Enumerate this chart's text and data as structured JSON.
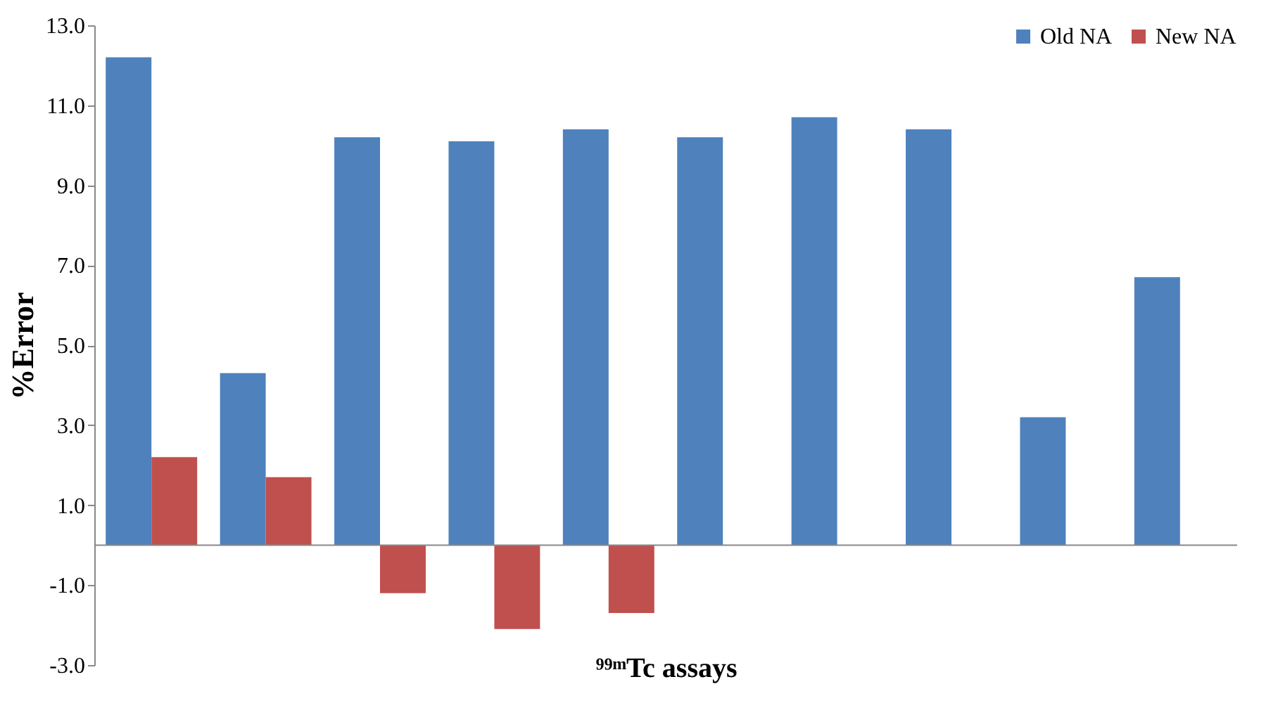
{
  "chart_data": {
    "type": "bar",
    "xlabel": "⁹⁹ᵐTc assays",
    "ylabel": "%Error",
    "categories": [
      null,
      null,
      null,
      null,
      null,
      null,
      null,
      null,
      null,
      null
    ],
    "series": [
      {
        "name": "Old NA",
        "color": "#4f81bd",
        "values": [
          12.2,
          4.3,
          10.2,
          10.1,
          10.4,
          10.2,
          10.7,
          10.4,
          3.2,
          6.7
        ]
      },
      {
        "name": "New NA",
        "color": "#c0504d",
        "values": [
          2.2,
          1.7,
          -1.2,
          -2.1,
          -1.7,
          null,
          null,
          null,
          null,
          null
        ]
      }
    ],
    "ylim": [
      -3,
      13
    ],
    "yticks": [
      {
        "value": -3,
        "label": "-3.0"
      },
      {
        "value": -1,
        "label": "-1.0"
      },
      {
        "value": 1,
        "label": "1.0"
      },
      {
        "value": 3,
        "label": "3.0"
      },
      {
        "value": 5,
        "label": "5.0"
      },
      {
        "value": 7,
        "label": "7.0"
      },
      {
        "value": 9,
        "label": "9.0"
      },
      {
        "value": 11,
        "label": "11.0"
      },
      {
        "value": 13,
        "label": "13.0"
      }
    ],
    "grid": false,
    "legend": "top right"
  }
}
